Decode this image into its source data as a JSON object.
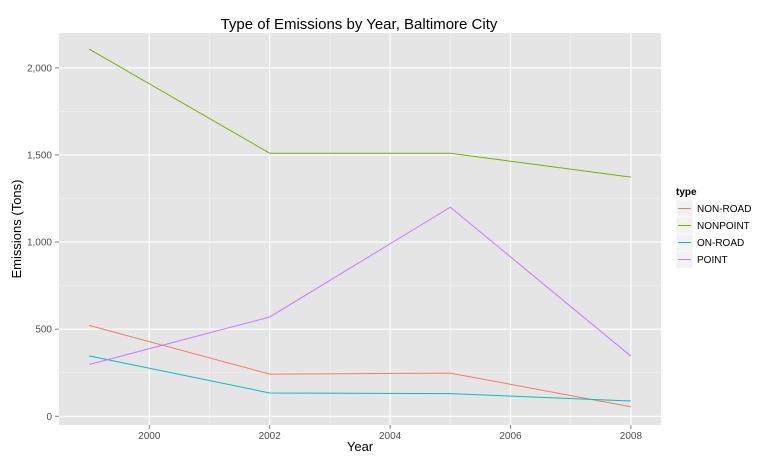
{
  "chart_data": {
    "type": "line",
    "title": "Type of Emissions by Year, Baltimore City",
    "xlabel": "Year",
    "ylabel": "Emissions (Tons)",
    "x": [
      1999,
      2002,
      2005,
      2008
    ],
    "xlim": [
      1998.5,
      2008.5
    ],
    "ylim": [
      -50,
      2200
    ],
    "xticks": [
      2000,
      2002,
      2004,
      2006,
      2008
    ],
    "xtick_labels": [
      "2000",
      "2002",
      "2004",
      "2006",
      "2008"
    ],
    "yticks": [
      0,
      500,
      1000,
      1500,
      2000
    ],
    "ytick_labels": [
      "0",
      "500",
      "1,000",
      "1,500",
      "2,000"
    ],
    "legend": {
      "title": "type",
      "position": "right"
    },
    "grid": true,
    "series": [
      {
        "name": "NON-ROAD",
        "color": "#F8766D",
        "values": [
          522,
          242,
          248,
          55
        ]
      },
      {
        "name": "NONPOINT",
        "color": "#7CAE00",
        "values": [
          2108,
          1510,
          1510,
          1373
        ]
      },
      {
        "name": "ON-ROAD",
        "color": "#00BFC4",
        "values": [
          347,
          134,
          130,
          88
        ]
      },
      {
        "name": "POINT",
        "color": "#C77CFF",
        "values": [
          297,
          570,
          1200,
          345
        ]
      }
    ]
  }
}
